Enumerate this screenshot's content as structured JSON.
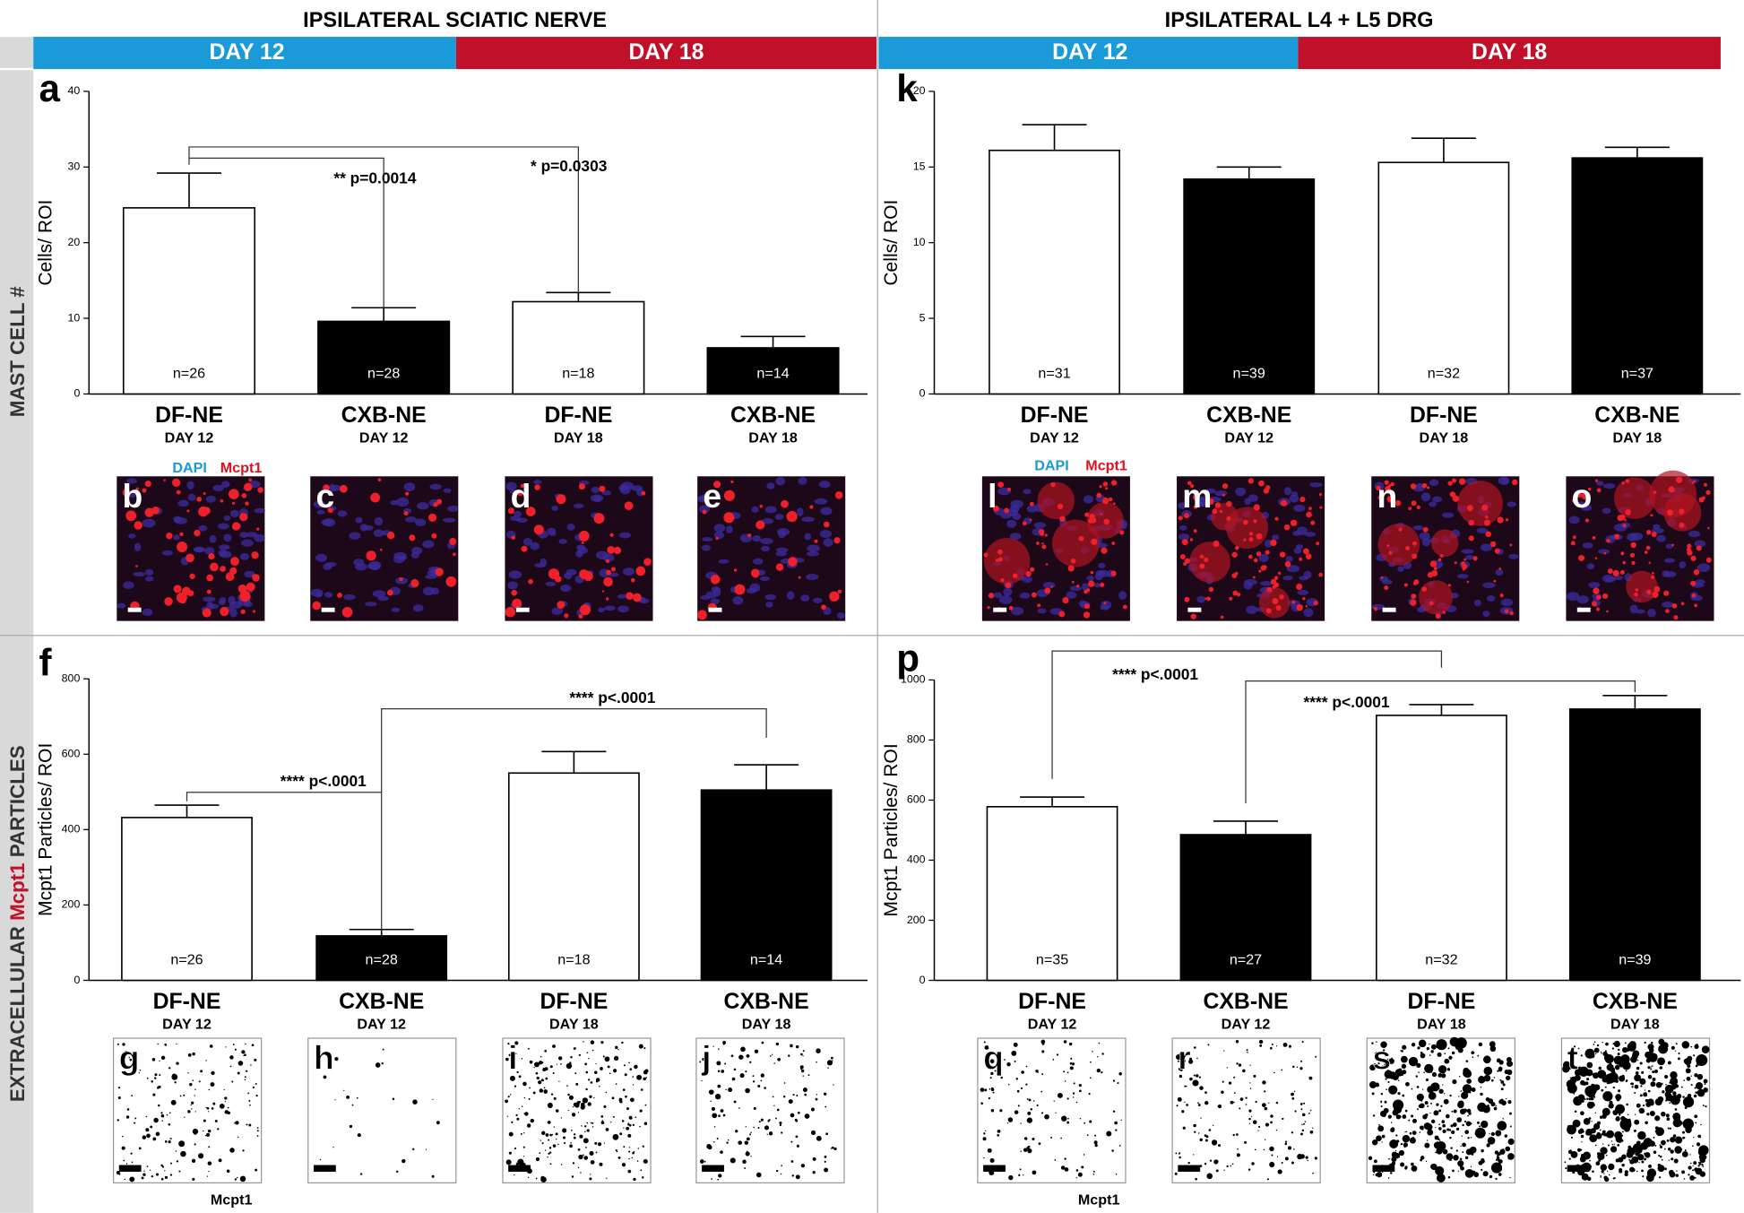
{
  "figure": {
    "headers": [
      "IPSILATERAL SCIATIC NERVE",
      "IPSILATERAL L4 + L5 DRG"
    ],
    "bands": [
      "DAY 12",
      "DAY 18",
      "DAY 12",
      "DAY 18"
    ],
    "row_labels": [
      "MAST CELL #",
      "EXTRACELLULAR",
      "Mcpt1",
      "PARTICLES"
    ],
    "image_letters": [
      "b",
      "c",
      "d",
      "e",
      "l",
      "m",
      "n",
      "o",
      "g",
      "h",
      "i",
      "j",
      "q",
      "r",
      "s",
      "t"
    ],
    "stain_legend": [
      "DAPI",
      "Mcpt1",
      "DAPI",
      "Mcpt1"
    ],
    "image_captions": [
      "Mcpt1",
      "Mcpt1"
    ]
  },
  "chart_data": [
    {
      "type": "bar",
      "panel": "a",
      "y_label": "Cells/ ROI",
      "categories": [
        "DF-NE",
        "CXB-NE",
        "DF-NE",
        "CXB-NE"
      ],
      "subcategories": [
        "DAY 12",
        "DAY 12",
        "DAY 18",
        "DAY 18"
      ],
      "values": [
        24.6,
        9.6,
        12.2,
        6.1
      ],
      "errors": [
        4.6,
        1.8,
        1.2,
        1.5
      ],
      "n_labels": [
        "n=26",
        "n=28",
        "n=18",
        "n=14"
      ],
      "colors": [
        "#ffffff",
        "#000000",
        "#ffffff",
        "#000000"
      ],
      "ylim": [
        0,
        40
      ],
      "yticks": [
        0,
        10,
        20,
        30,
        40
      ],
      "annotations": [
        "** p=0.0014",
        "* p=0.0303"
      ]
    },
    {
      "type": "bar",
      "panel": "k",
      "y_label": "Cells/ ROI",
      "categories": [
        "DF-NE",
        "CXB-NE",
        "DF-NE",
        "CXB-NE"
      ],
      "subcategories": [
        "DAY 12",
        "DAY 12",
        "DAY 18",
        "DAY 18"
      ],
      "values": [
        16.1,
        14.2,
        15.3,
        15.6
      ],
      "errors": [
        1.7,
        0.8,
        1.6,
        0.7
      ],
      "n_labels": [
        "n=31",
        "n=39",
        "n=32",
        "n=37"
      ],
      "colors": [
        "#ffffff",
        "#000000",
        "#ffffff",
        "#000000"
      ],
      "ylim": [
        0,
        20
      ],
      "yticks": [
        0,
        5,
        10,
        15,
        20
      ],
      "annotations": []
    },
    {
      "type": "bar",
      "panel": "f",
      "y_label": "Mcpt1 Particles/ ROI",
      "categories": [
        "DF-NE",
        "CXB-NE",
        "DF-NE",
        "CXB-NE"
      ],
      "subcategories": [
        "DAY 12",
        "DAY 12",
        "DAY 18",
        "DAY 18"
      ],
      "values": [
        432,
        118,
        550,
        505
      ],
      "errors": [
        33,
        17,
        57,
        67
      ],
      "n_labels": [
        "n=26",
        "n=28",
        "n=18",
        "n=14"
      ],
      "colors": [
        "#ffffff",
        "#000000",
        "#ffffff",
        "#000000"
      ],
      "ylim": [
        0,
        800
      ],
      "yticks": [
        0,
        200,
        400,
        600,
        800
      ],
      "annotations": [
        "**** p<.0001",
        "**** p<.0001"
      ]
    },
    {
      "type": "bar",
      "panel": "p",
      "y_label": "Mcpt1 Particles/ ROI",
      "categories": [
        "DF-NE",
        "CXB-NE",
        "DF-NE",
        "CXB-NE"
      ],
      "subcategories": [
        "DAY 12",
        "DAY 12",
        "DAY 18",
        "DAY 18"
      ],
      "values": [
        578,
        485,
        882,
        903
      ],
      "errors": [
        32,
        45,
        36,
        45
      ],
      "n_labels": [
        "n=35",
        "n=27",
        "n=32",
        "n=39"
      ],
      "colors": [
        "#ffffff",
        "#000000",
        "#ffffff",
        "#000000"
      ],
      "ylim": [
        0,
        1000
      ],
      "yticks": [
        0,
        200,
        400,
        600,
        800,
        1000
      ],
      "annotations": [
        "**** p<.0001",
        "**** p<.0001"
      ]
    }
  ]
}
